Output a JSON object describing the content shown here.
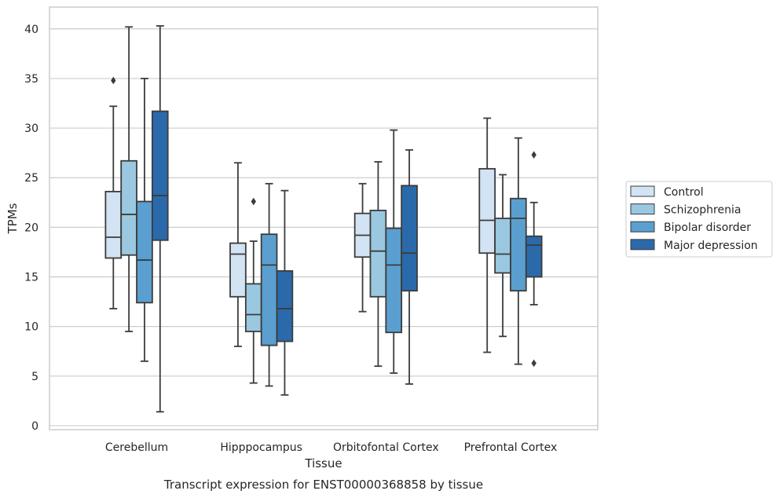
{
  "caption": "Transcript expression for ENST00000368858 by tissue",
  "chart_data": {
    "type": "boxplot",
    "xlabel": "Tissue",
    "ylabel": "TPMs",
    "ylim": [
      -0.4,
      42.2
    ],
    "yticks": [
      0,
      5,
      10,
      15,
      20,
      25,
      30,
      35,
      40
    ],
    "grid": "horizontal",
    "legend_position": "right",
    "categories": [
      "Cerebellum",
      "Hipppocampus",
      "Orbitofontal Cortex",
      "Prefrontal Cortex"
    ],
    "series": [
      {
        "name": "Control",
        "color": "#d2e3f3",
        "boxes": [
          {
            "whislo": 11.8,
            "q1": 16.9,
            "med": 19.0,
            "q3": 23.6,
            "whishi": 32.2,
            "fliers": [
              34.8
            ]
          },
          {
            "whislo": 8.0,
            "q1": 13.0,
            "med": 17.3,
            "q3": 18.4,
            "whishi": 26.5,
            "fliers": []
          },
          {
            "whislo": 11.5,
            "q1": 17.0,
            "med": 19.2,
            "q3": 21.4,
            "whishi": 24.4,
            "fliers": []
          },
          {
            "whislo": 7.4,
            "q1": 17.4,
            "med": 20.7,
            "q3": 25.9,
            "whishi": 31.0,
            "fliers": []
          }
        ]
      },
      {
        "name": "Schizophrenia",
        "color": "#9ac8e0",
        "boxes": [
          {
            "whislo": 9.5,
            "q1": 17.2,
            "med": 21.3,
            "q3": 26.7,
            "whishi": 40.2,
            "fliers": []
          },
          {
            "whislo": 4.3,
            "q1": 9.5,
            "med": 11.2,
            "q3": 14.3,
            "whishi": 18.6,
            "fliers": [
              22.6
            ]
          },
          {
            "whislo": 6.0,
            "q1": 13.0,
            "med": 17.6,
            "q3": 21.7,
            "whishi": 26.6,
            "fliers": []
          },
          {
            "whislo": 9.0,
            "q1": 15.4,
            "med": 17.3,
            "q3": 20.9,
            "whishi": 25.3,
            "fliers": []
          }
        ]
      },
      {
        "name": "Bipolar disorder",
        "color": "#5a9fcf",
        "boxes": [
          {
            "whislo": 6.5,
            "q1": 12.4,
            "med": 16.7,
            "q3": 22.6,
            "whishi": 35.0,
            "fliers": []
          },
          {
            "whislo": 4.0,
            "q1": 8.1,
            "med": 16.2,
            "q3": 19.3,
            "whishi": 24.4,
            "fliers": []
          },
          {
            "whislo": 5.3,
            "q1": 9.4,
            "med": 16.2,
            "q3": 19.9,
            "whishi": 29.8,
            "fliers": []
          },
          {
            "whislo": 6.2,
            "q1": 13.6,
            "med": 20.9,
            "q3": 22.9,
            "whishi": 29.0,
            "fliers": []
          }
        ]
      },
      {
        "name": "Major depression",
        "color": "#2a6aab",
        "boxes": [
          {
            "whislo": 1.4,
            "q1": 18.7,
            "med": 23.2,
            "q3": 31.7,
            "whishi": 40.3,
            "fliers": []
          },
          {
            "whislo": 3.1,
            "q1": 8.5,
            "med": 11.8,
            "q3": 15.6,
            "whishi": 23.7,
            "fliers": []
          },
          {
            "whislo": 4.2,
            "q1": 13.6,
            "med": 17.4,
            "q3": 24.2,
            "whishi": 27.8,
            "fliers": []
          },
          {
            "whislo": 12.2,
            "q1": 15.0,
            "med": 18.2,
            "q3": 19.1,
            "whishi": 22.5,
            "fliers": [
              27.3,
              6.3
            ]
          }
        ]
      }
    ]
  }
}
